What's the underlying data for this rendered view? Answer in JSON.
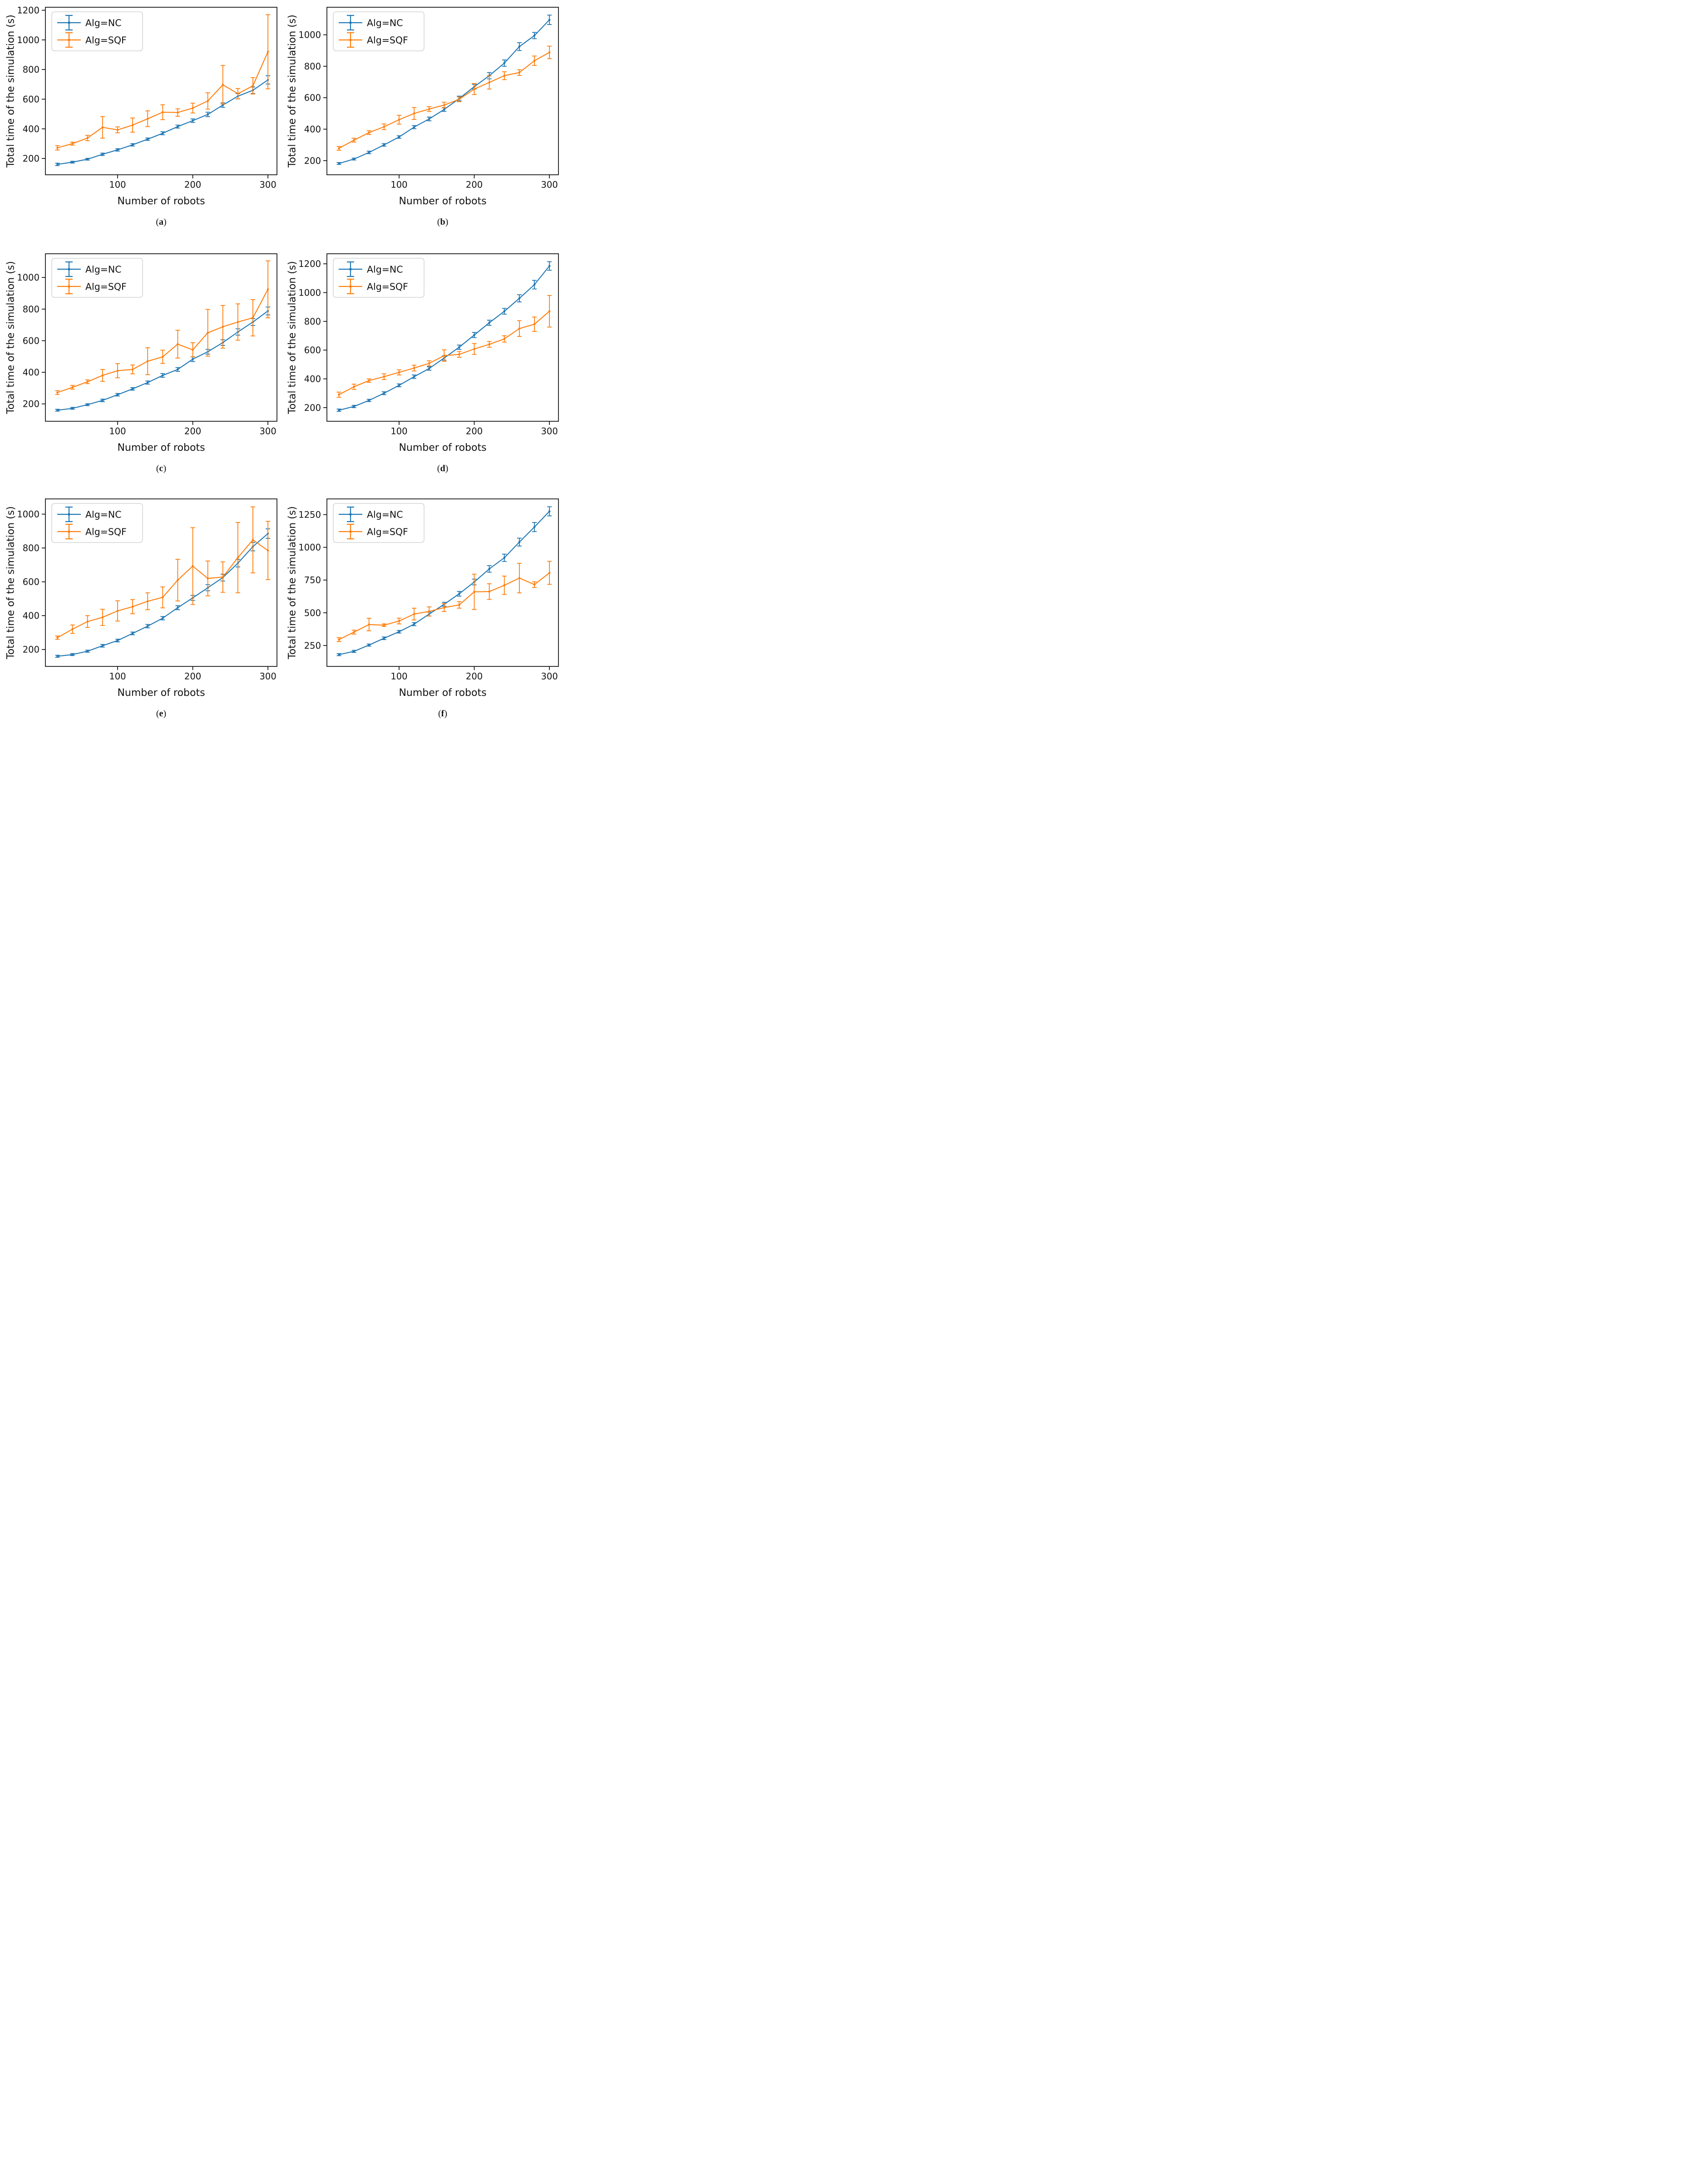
{
  "labels": {
    "caption_open": "(",
    "caption_close": ")"
  },
  "colors": {
    "nc": "#1f77b4",
    "sqf": "#ff7f0e",
    "axis": "#111111",
    "legend_border": "#cccccc",
    "background": "#ffffff"
  },
  "chart_data": [
    {
      "caption_letter": "a",
      "type": "line",
      "title": "",
      "xlabel": "Number of robots",
      "ylabel": "Total time of the simulation (s)",
      "x": [
        20,
        40,
        60,
        80,
        100,
        120,
        140,
        160,
        180,
        200,
        220,
        240,
        260,
        280,
        300
      ],
      "xticks": [
        100,
        200,
        300
      ],
      "yticks": [
        200,
        400,
        600,
        800,
        1000,
        1200
      ],
      "xlim": [
        4,
        312
      ],
      "ylim": [
        90,
        1220
      ],
      "grid": false,
      "legend_position": "upper left",
      "series": [
        {
          "name": "Alg=NC",
          "color": "#1f77b4",
          "values": [
            160,
            175,
            195,
            228,
            258,
            292,
            330,
            370,
            415,
            455,
            497,
            560,
            620,
            660,
            730
          ],
          "errors": [
            8,
            6,
            6,
            8,
            8,
            8,
            8,
            10,
            10,
            12,
            15,
            15,
            18,
            22,
            28
          ]
        },
        {
          "name": "Alg=SQF",
          "color": "#ff7f0e",
          "values": [
            272,
            300,
            338,
            410,
            393,
            425,
            468,
            512,
            510,
            540,
            588,
            697,
            637,
            690,
            920
          ],
          "errors": [
            15,
            10,
            18,
            73,
            20,
            48,
            53,
            50,
            25,
            33,
            55,
            130,
            35,
            55,
            250
          ]
        }
      ]
    },
    {
      "caption_letter": "b",
      "type": "line",
      "title": "",
      "xlabel": "Number of robots",
      "ylabel": "Total time of the simulation (s)",
      "x": [
        20,
        40,
        60,
        80,
        100,
        120,
        140,
        160,
        180,
        200,
        220,
        240,
        260,
        280,
        300
      ],
      "xticks": [
        100,
        200,
        300
      ],
      "yticks": [
        200,
        400,
        600,
        800,
        1000
      ],
      "xlim": [
        4,
        312
      ],
      "ylim": [
        110,
        1175
      ],
      "grid": false,
      "legend_position": "upper left",
      "series": [
        {
          "name": "Alg=NC",
          "color": "#1f77b4",
          "values": [
            182,
            210,
            252,
            300,
            350,
            413,
            465,
            525,
            595,
            670,
            740,
            820,
            925,
            995,
            1095
          ],
          "errors": [
            6,
            6,
            8,
            8,
            8,
            10,
            12,
            12,
            15,
            15,
            20,
            20,
            25,
            20,
            30
          ]
        },
        {
          "name": "Alg=SQF",
          "color": "#ff7f0e",
          "values": [
            278,
            330,
            378,
            415,
            460,
            500,
            528,
            553,
            590,
            655,
            697,
            740,
            760,
            835,
            888
          ],
          "errors": [
            12,
            12,
            12,
            18,
            28,
            38,
            15,
            18,
            15,
            35,
            42,
            25,
            18,
            30,
            40
          ]
        }
      ]
    },
    {
      "caption_letter": "c",
      "type": "line",
      "title": "",
      "xlabel": "Number of robots",
      "ylabel": "Total time of the simulation (s)",
      "x": [
        20,
        40,
        60,
        80,
        100,
        120,
        140,
        160,
        180,
        200,
        220,
        240,
        260,
        280,
        300
      ],
      "xticks": [
        100,
        200,
        300
      ],
      "yticks": [
        200,
        400,
        600,
        800,
        1000
      ],
      "xlim": [
        4,
        312
      ],
      "ylim": [
        90,
        1150
      ],
      "grid": false,
      "legend_position": "upper left",
      "series": [
        {
          "name": "Alg=NC",
          "color": "#1f77b4",
          "values": [
            160,
            172,
            195,
            222,
            258,
            295,
            335,
            380,
            418,
            483,
            530,
            588,
            655,
            718,
            788
          ],
          "errors": [
            6,
            6,
            6,
            8,
            8,
            8,
            10,
            12,
            12,
            15,
            15,
            18,
            20,
            22,
            25
          ]
        },
        {
          "name": "Alg=SQF",
          "color": "#ff7f0e",
          "values": [
            272,
            305,
            340,
            380,
            410,
            418,
            470,
            498,
            578,
            542,
            650,
            688,
            718,
            745,
            925
          ],
          "errors": [
            12,
            12,
            12,
            38,
            45,
            28,
            85,
            42,
            88,
            45,
            148,
            135,
            115,
            115,
            180
          ]
        }
      ]
    },
    {
      "caption_letter": "d",
      "type": "line",
      "title": "",
      "xlabel": "Number of robots",
      "ylabel": "Total time of the simulation (s)",
      "x": [
        20,
        40,
        60,
        80,
        100,
        120,
        140,
        160,
        180,
        200,
        220,
        240,
        260,
        280,
        300
      ],
      "xticks": [
        100,
        200,
        300
      ],
      "yticks": [
        200,
        400,
        600,
        800,
        1000,
        1200
      ],
      "xlim": [
        4,
        312
      ],
      "ylim": [
        105,
        1270
      ],
      "grid": false,
      "legend_position": "upper left",
      "series": [
        {
          "name": "Alg=NC",
          "color": "#1f77b4",
          "values": [
            182,
            208,
            250,
            300,
            355,
            415,
            472,
            545,
            620,
            705,
            790,
            870,
            960,
            1055,
            1185
          ],
          "errors": [
            8,
            8,
            8,
            10,
            10,
            12,
            12,
            15,
            15,
            18,
            18,
            20,
            25,
            30,
            30
          ]
        },
        {
          "name": "Alg=SQF",
          "color": "#ff7f0e",
          "values": [
            290,
            345,
            388,
            415,
            445,
            475,
            508,
            562,
            570,
            608,
            640,
            678,
            750,
            780,
            870
          ],
          "errors": [
            18,
            18,
            12,
            20,
            18,
            20,
            18,
            40,
            20,
            38,
            20,
            22,
            55,
            50,
            110
          ]
        }
      ]
    },
    {
      "caption_letter": "e",
      "type": "line",
      "title": "",
      "xlabel": "Number of robots",
      "ylabel": "Total time of the simulation (s)",
      "x": [
        20,
        40,
        60,
        80,
        100,
        120,
        140,
        160,
        180,
        200,
        220,
        240,
        260,
        280,
        300
      ],
      "xticks": [
        100,
        200,
        300
      ],
      "yticks": [
        200,
        400,
        600,
        800,
        1000
      ],
      "xlim": [
        4,
        312
      ],
      "ylim": [
        100,
        1090
      ],
      "grid": false,
      "legend_position": "upper left",
      "series": [
        {
          "name": "Alg=NC",
          "color": "#1f77b4",
          "values": [
            160,
            170,
            190,
            222,
            253,
            295,
            338,
            385,
            447,
            505,
            565,
            625,
            710,
            808,
            885
          ],
          "errors": [
            6,
            6,
            6,
            8,
            8,
            8,
            10,
            10,
            12,
            15,
            18,
            20,
            22,
            25,
            28
          ]
        },
        {
          "name": "Alg=SQF",
          "color": "#ff7f0e",
          "values": [
            270,
            320,
            365,
            390,
            428,
            453,
            485,
            508,
            610,
            693,
            620,
            628,
            743,
            848,
            785
          ],
          "errors": [
            10,
            25,
            35,
            48,
            60,
            42,
            50,
            62,
            123,
            227,
            103,
            90,
            208,
            195,
            172
          ]
        }
      ]
    },
    {
      "caption_letter": "f",
      "type": "line",
      "title": "",
      "xlabel": "Number of robots",
      "ylabel": "Total time of the simulation (s)",
      "x": [
        20,
        40,
        60,
        80,
        100,
        120,
        140,
        160,
        180,
        200,
        220,
        240,
        260,
        280,
        300
      ],
      "xticks": [
        100,
        200,
        300
      ],
      "yticks": [
        250,
        500,
        750,
        1000,
        1250
      ],
      "xlim": [
        4,
        312
      ],
      "ylim": [
        90,
        1370
      ],
      "grid": false,
      "legend_position": "upper left",
      "series": [
        {
          "name": "Alg=NC",
          "color": "#1f77b4",
          "values": [
            180,
            205,
            253,
            305,
            355,
            413,
            490,
            565,
            645,
            735,
            835,
            920,
            1040,
            1155,
            1275
          ],
          "errors": [
            8,
            8,
            8,
            10,
            10,
            12,
            15,
            15,
            18,
            22,
            25,
            28,
            30,
            35,
            35
          ]
        },
        {
          "name": "Alg=SQF",
          "color": "#ff7f0e",
          "values": [
            295,
            352,
            410,
            405,
            437,
            490,
            510,
            540,
            560,
            660,
            662,
            710,
            765,
            715,
            805
          ],
          "errors": [
            15,
            15,
            48,
            10,
            22,
            45,
            35,
            30,
            25,
            135,
            60,
            70,
            113,
            22,
            88
          ]
        }
      ]
    }
  ]
}
